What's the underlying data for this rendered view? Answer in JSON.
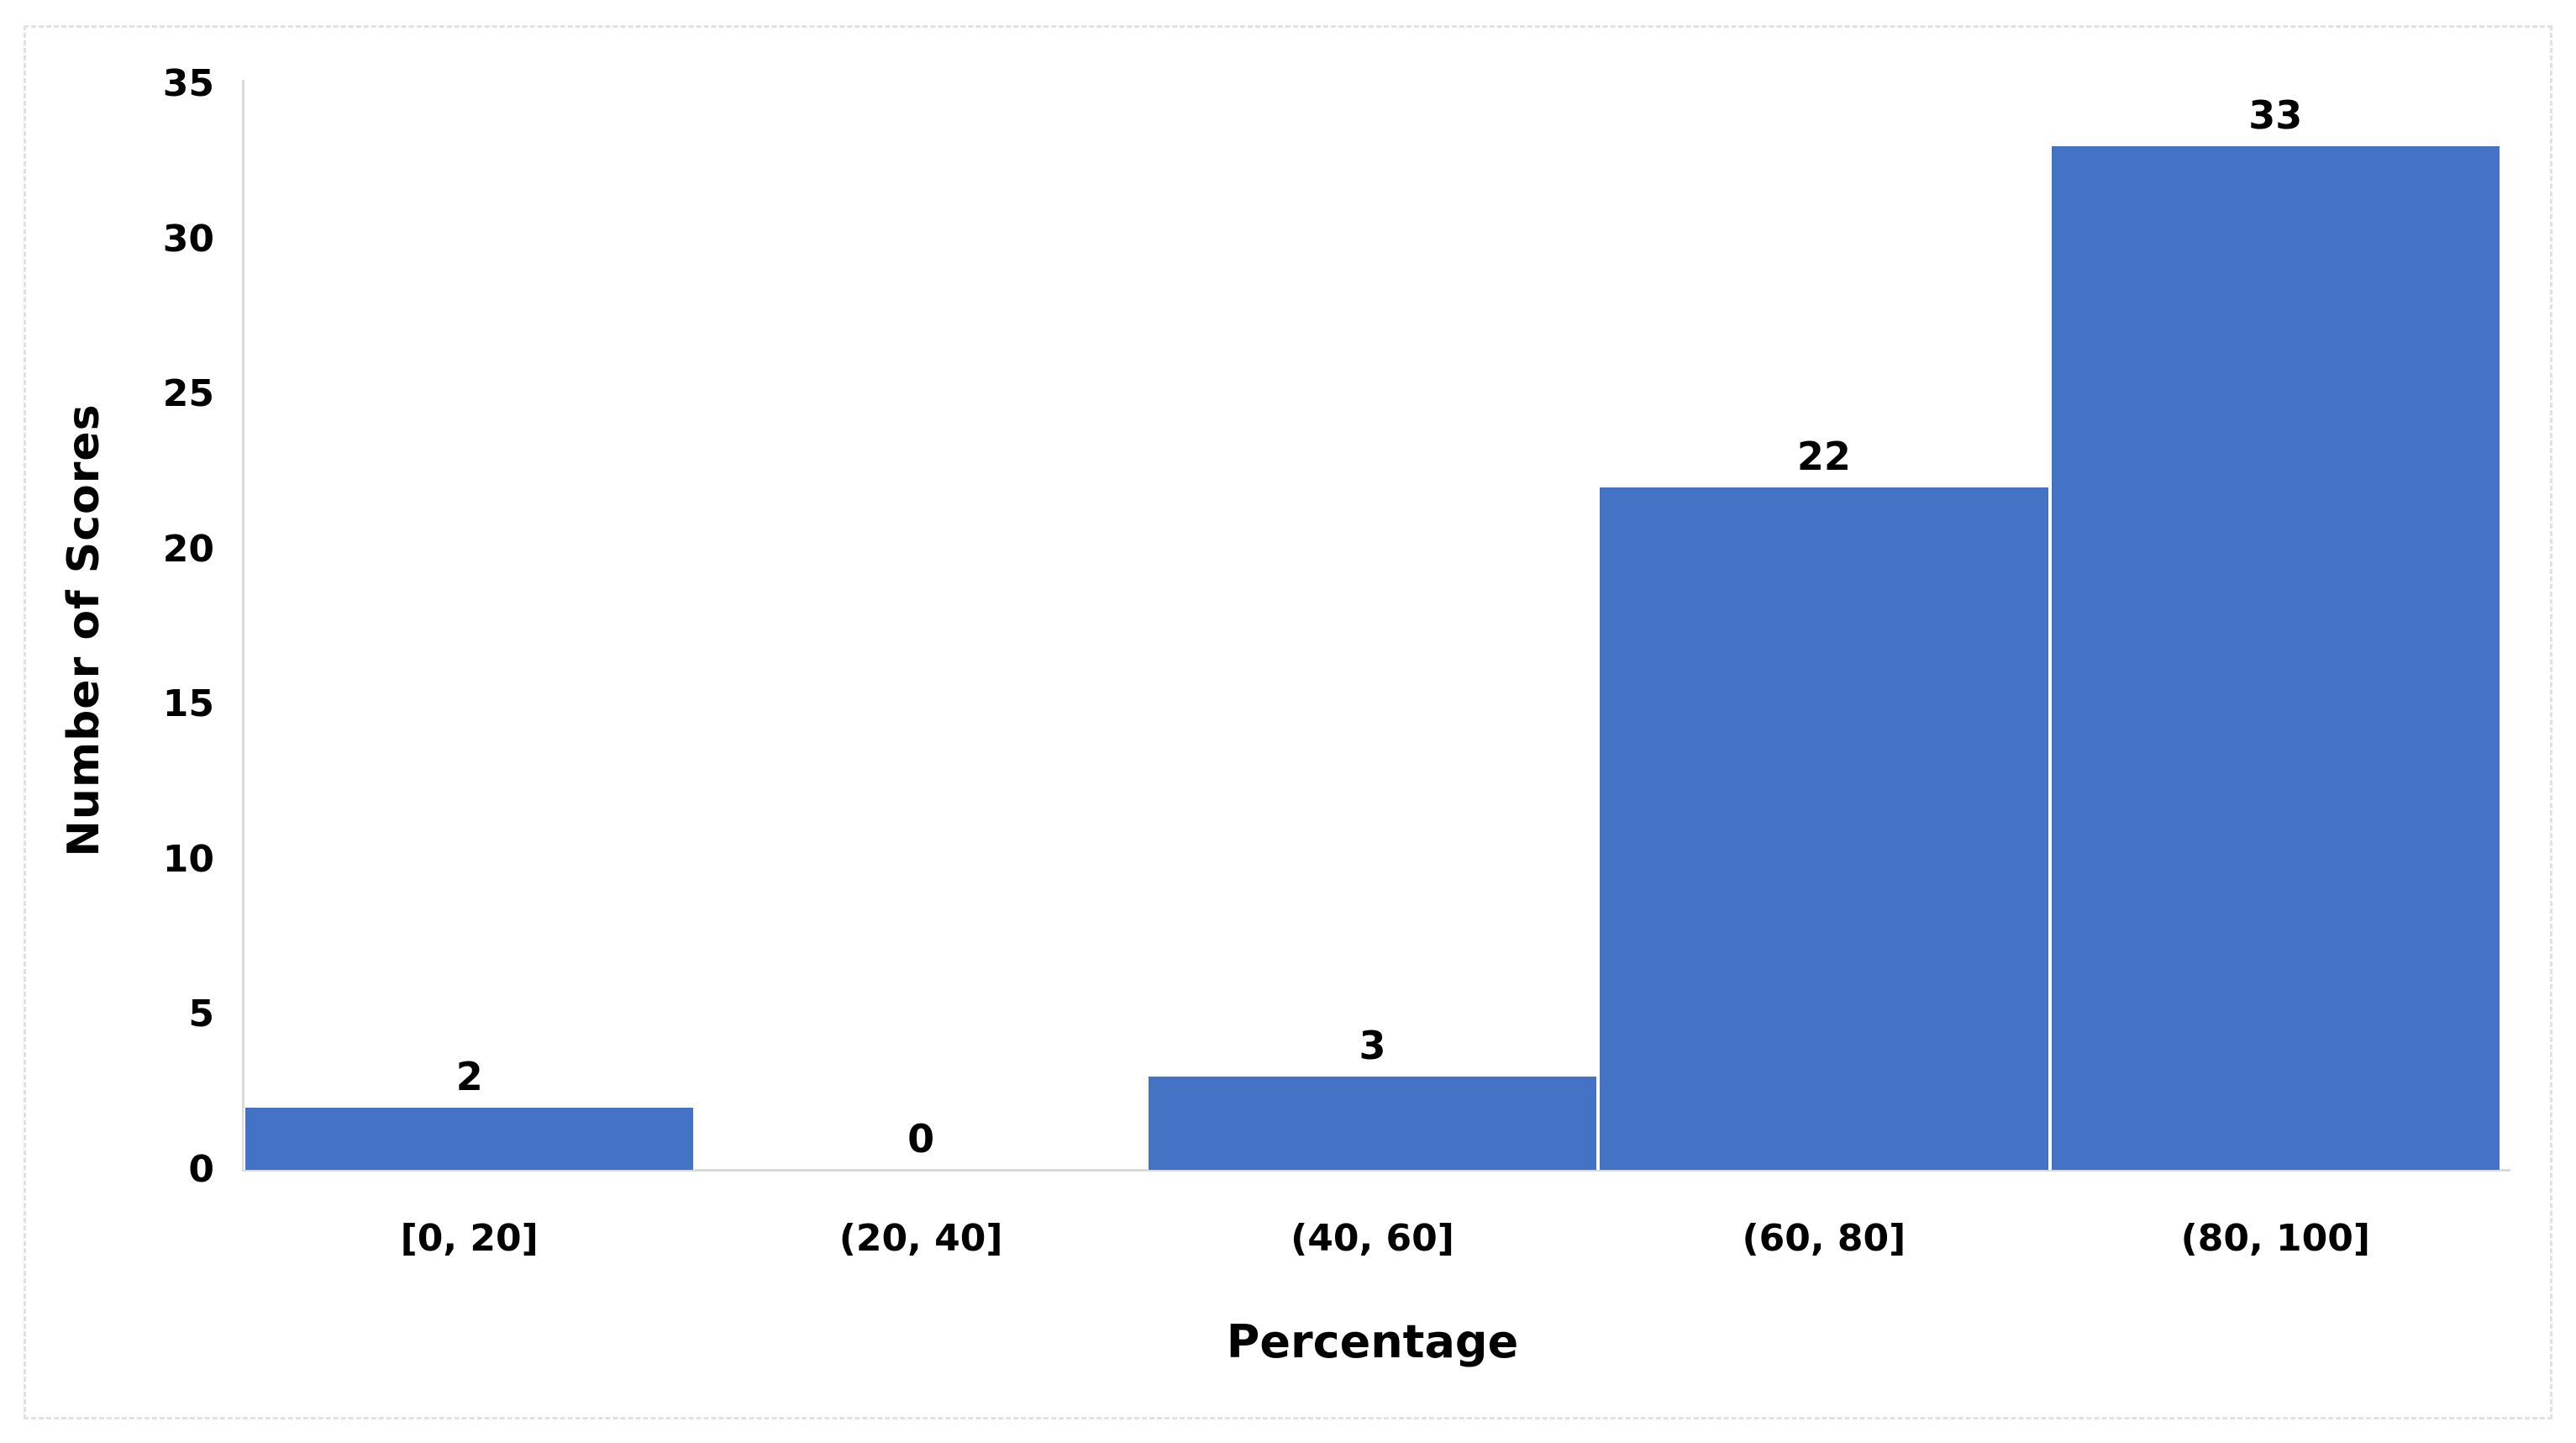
{
  "chart_data": {
    "type": "bar",
    "title": "",
    "categories": [
      "[0, 20]",
      "(20, 40]",
      "(40, 60]",
      "(60, 80]",
      "(80, 100]"
    ],
    "values": [
      2,
      0,
      3,
      22,
      33
    ],
    "data_labels": [
      "2",
      "0",
      "3",
      "22",
      "33"
    ],
    "xlabel": "Percentage",
    "ylabel": "Number of Scores",
    "ylim": [
      0,
      35
    ],
    "yticks": [
      0,
      5,
      10,
      15,
      20,
      25,
      30,
      35
    ],
    "grid": false,
    "legend": "none",
    "colors": {
      "bar": "#4472C4",
      "axis_line": "#D9D9D9",
      "chart_border": "#E1E1E1",
      "text": "#000000",
      "background": "#FFFFFF"
    }
  }
}
